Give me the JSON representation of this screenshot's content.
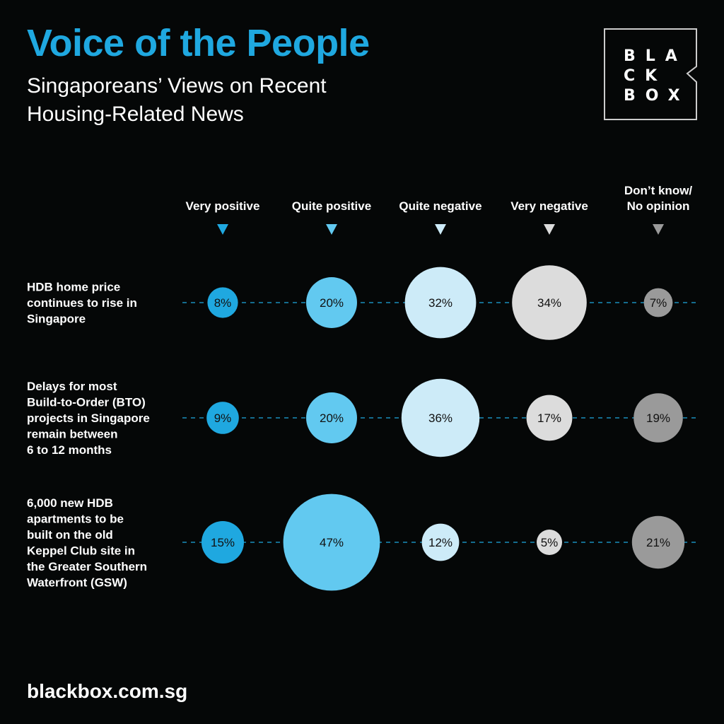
{
  "header": {
    "title": "Voice of the People",
    "subtitle": "Singaporeans’ Views on Recent Housing-Related News"
  },
  "logo": {
    "lines": [
      "BLA",
      "CK",
      "BOX"
    ]
  },
  "footer": {
    "url": "blackbox.com.sg"
  },
  "chart_data": {
    "type": "bubble",
    "title": "Singaporeans’ Views on Recent Housing-Related News",
    "categories": [
      {
        "label": [
          "Very positive"
        ],
        "color": "#1fa8e0"
      },
      {
        "label": [
          "Quite positive"
        ],
        "color": "#62c9f0"
      },
      {
        "label": [
          "Quite negative"
        ],
        "color": "#cdebf8"
      },
      {
        "label": [
          "Very negative"
        ],
        "color": "#dcdcdc"
      },
      {
        "label": [
          "Don’t know/",
          "No opinion"
        ],
        "color": "#9a9a9a"
      }
    ],
    "rows": [
      {
        "label": [
          "HDB home price",
          "continues to rise in",
          "Singapore"
        ],
        "values": [
          8,
          20,
          32,
          34,
          7
        ]
      },
      {
        "label": [
          "Delays for most",
          "Build-to-Order (BTO)",
          "projects in Singapore",
          "remain between",
          "6 to 12 months"
        ],
        "values": [
          9,
          20,
          36,
          17,
          19
        ]
      },
      {
        "label": [
          "6,000 new HDB",
          "apartments to be",
          "built on the old",
          "Keppel Club site in",
          "the Greater Southern",
          "Waterfront (GSW)"
        ],
        "values": [
          15,
          47,
          12,
          5,
          21
        ]
      }
    ],
    "unit": "%",
    "guide_line_color": "#1fa8e0"
  }
}
